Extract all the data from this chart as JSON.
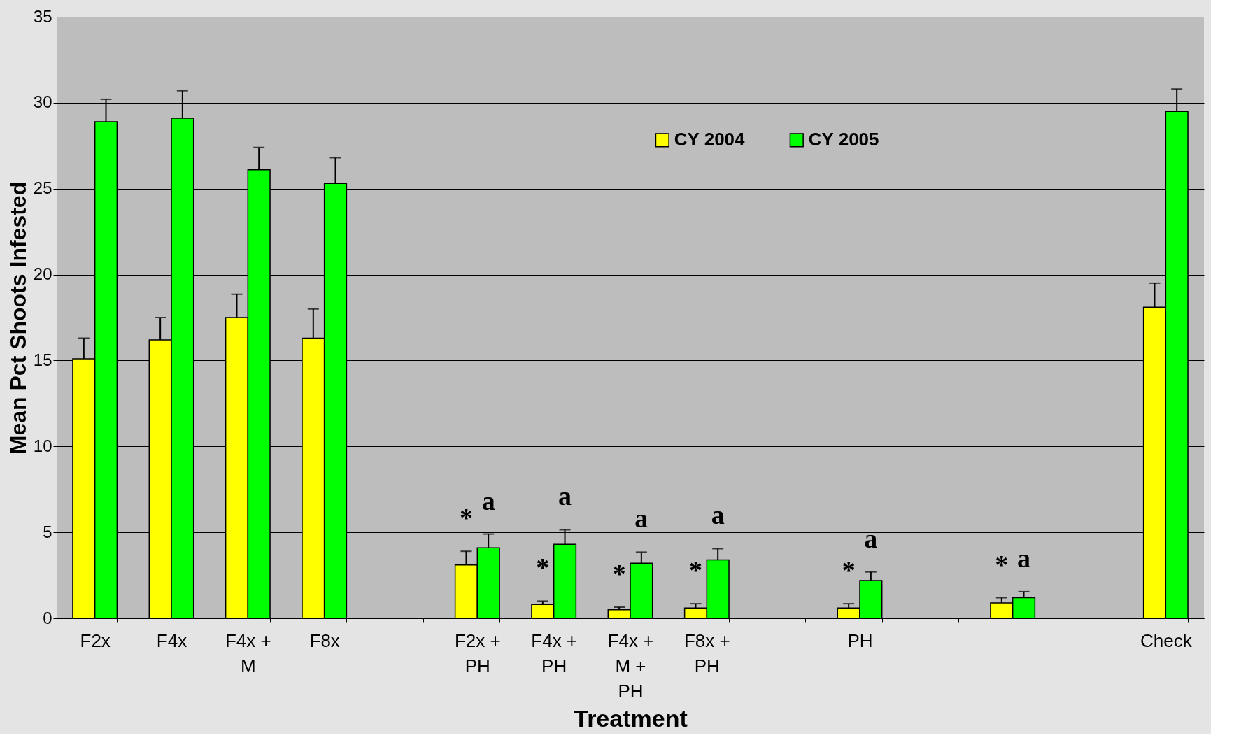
{
  "chart_data": {
    "type": "bar",
    "xlabel": "Treatment",
    "ylabel": "Mean Pct Shoots Infested",
    "categories": [
      "F2x",
      "F4x",
      "F4x + M",
      "F8x",
      null,
      "F2x + PH",
      "F4x + PH",
      "F4x + M + PH",
      "F8x + PH",
      null,
      "PH",
      null,
      null,
      null,
      "Check"
    ],
    "series": [
      {
        "name": "CY 2004",
        "color": "#ffff00",
        "values": [
          15.1,
          16.2,
          17.5,
          16.3,
          null,
          3.1,
          0.8,
          0.5,
          0.6,
          null,
          0.6,
          null,
          0.9,
          null,
          18.1
        ],
        "errors": [
          1.2,
          1.3,
          1.35,
          1.7,
          null,
          0.8,
          0.2,
          0.15,
          0.25,
          null,
          0.25,
          null,
          0.3,
          null,
          1.4
        ],
        "value_labels": [
          null,
          null,
          null,
          null,
          null,
          "*",
          "*",
          "*",
          "*",
          null,
          "*",
          null,
          "*",
          null,
          null
        ]
      },
      {
        "name": "CY 2005",
        "color": "#00ff00",
        "values": [
          28.9,
          29.1,
          26.1,
          25.3,
          null,
          4.1,
          4.3,
          3.2,
          3.4,
          null,
          2.2,
          null,
          1.2,
          null,
          29.5
        ],
        "errors": [
          1.3,
          1.6,
          1.3,
          1.5,
          null,
          0.8,
          0.85,
          0.65,
          0.65,
          null,
          0.5,
          null,
          0.35,
          null,
          1.3
        ],
        "value_labels": [
          null,
          null,
          null,
          null,
          null,
          "a",
          "a",
          "a",
          "a",
          null,
          "a",
          null,
          "a",
          null,
          null
        ]
      }
    ],
    "ylim": [
      0,
      35
    ],
    "yticks": [
      0,
      5,
      10,
      15,
      20,
      25,
      30,
      35
    ],
    "grid": "y",
    "legend": "top right"
  }
}
